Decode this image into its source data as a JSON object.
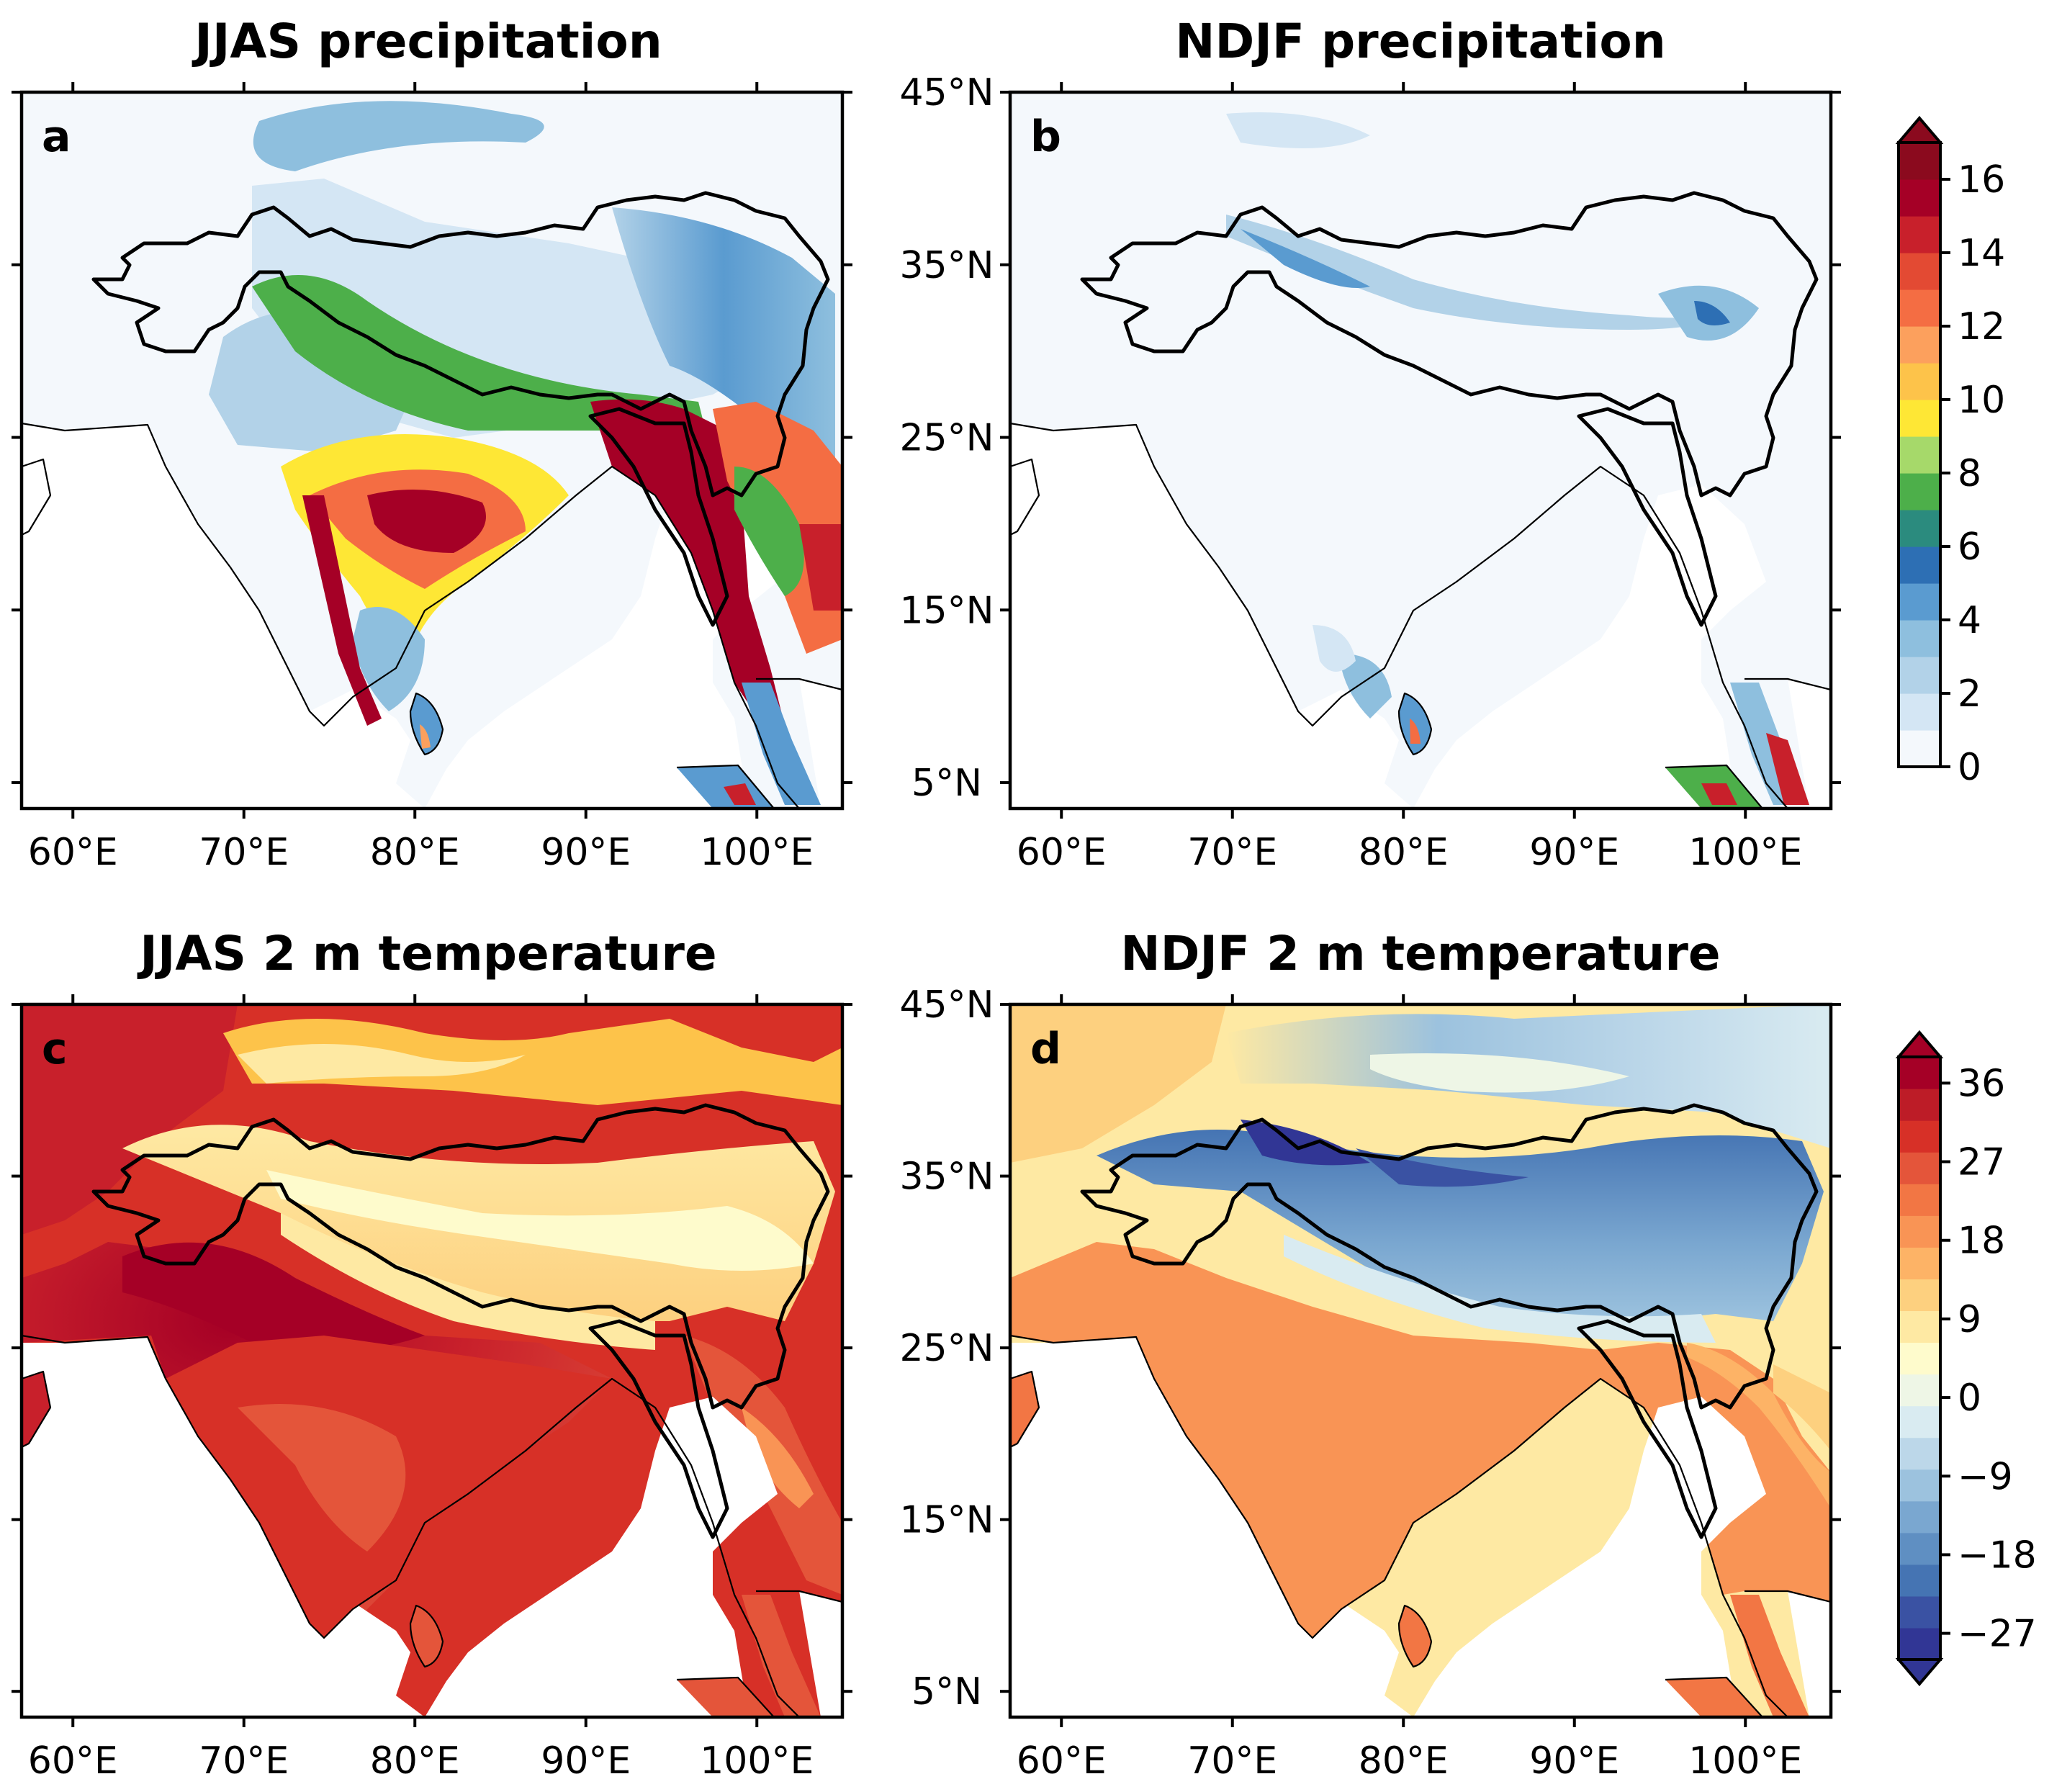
{
  "panels": [
    {
      "id": "a",
      "letter": "a",
      "title": "JJAS precipitation",
      "variable": "precipitation",
      "season": "JJAS"
    },
    {
      "id": "b",
      "letter": "b",
      "title": "NDJF precipitation",
      "variable": "precipitation",
      "season": "NDJF"
    },
    {
      "id": "c",
      "letter": "c",
      "title": "JJAS 2 m temperature",
      "variable": "temperature",
      "season": "JJAS"
    },
    {
      "id": "d",
      "letter": "d",
      "title": "NDJF 2 m temperature",
      "variable": "temperature",
      "season": "NDJF"
    }
  ],
  "map": {
    "lon_range": [
      57,
      105
    ],
    "lat_range": [
      3.5,
      45
    ],
    "lon_ticks": [
      {
        "value": 60,
        "label": "60°E"
      },
      {
        "value": 70,
        "label": "70°E"
      },
      {
        "value": 80,
        "label": "80°E"
      },
      {
        "value": 90,
        "label": "90°E"
      },
      {
        "value": 100,
        "label": "100°E"
      }
    ],
    "lat_ticks": [
      {
        "value": 45,
        "label": "45°N"
      },
      {
        "value": 35,
        "label": "35°N"
      },
      {
        "value": 25,
        "label": "25°N"
      },
      {
        "value": 15,
        "label": "15°N"
      },
      {
        "value": 5,
        "label": "5°N"
      }
    ]
  },
  "colorbars": {
    "precipitation": {
      "range": [
        0,
        17
      ],
      "extend": "max",
      "ticks": [
        {
          "value": 0,
          "label": "0"
        },
        {
          "value": 2,
          "label": "2"
        },
        {
          "value": 4,
          "label": "4"
        },
        {
          "value": 6,
          "label": "6"
        },
        {
          "value": 8,
          "label": "8"
        },
        {
          "value": 10,
          "label": "10"
        },
        {
          "value": 12,
          "label": "12"
        },
        {
          "value": 14,
          "label": "14"
        },
        {
          "value": 16,
          "label": "16"
        }
      ],
      "colors": [
        "#f4f8fc",
        "#d4e6f4",
        "#b2d2e8",
        "#8ebfde",
        "#5a9bd0",
        "#2d6fb4",
        "#2b8b7e",
        "#4daf4a",
        "#a6d96a",
        "#fee735",
        "#fdc34a",
        "#fca05d",
        "#f46d43",
        "#e34a33",
        "#c8202b",
        "#a50026",
        "#8b0a1e"
      ]
    },
    "temperature": {
      "range": [
        -30,
        39
      ],
      "extend": "both",
      "ticks": [
        {
          "value": -27,
          "label": "−27"
        },
        {
          "value": -18,
          "label": "−18"
        },
        {
          "value": -9,
          "label": "−9"
        },
        {
          "value": 0,
          "label": "0"
        },
        {
          "value": 9,
          "label": "9"
        },
        {
          "value": 18,
          "label": "18"
        },
        {
          "value": 27,
          "label": "27"
        },
        {
          "value": 36,
          "label": "36"
        }
      ],
      "colors": [
        "#313695",
        "#3a52a3",
        "#4574b3",
        "#5f8fc2",
        "#7aa7d0",
        "#9cc2de",
        "#bcd7e9",
        "#d9ebf1",
        "#eef6e6",
        "#fefbcc",
        "#fee9a3",
        "#fdd07f",
        "#fdb366",
        "#f99455",
        "#f27644",
        "#e4553a",
        "#d73027",
        "#bd1c27",
        "#a50026"
      ]
    }
  }
}
